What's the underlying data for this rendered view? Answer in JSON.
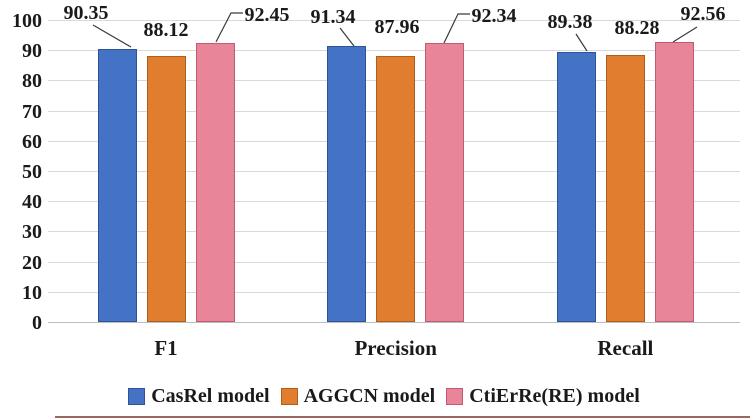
{
  "chart_data": {
    "type": "bar",
    "title": "",
    "categories": [
      "F1",
      "Precision",
      "Recall"
    ],
    "series": [
      {
        "name": "CasRel model",
        "color": "#4472C4",
        "border": "#2F5496",
        "values": [
          90.35,
          91.34,
          89.38
        ]
      },
      {
        "name": "AGGCN model",
        "color": "#E07D2E",
        "border": "#AE5E1D",
        "values": [
          88.12,
          87.96,
          88.28
        ]
      },
      {
        "name": "CtiErRe(RE) model",
        "color": "#E98598",
        "border": "#C05B74",
        "values": [
          92.45,
          92.34,
          92.56
        ]
      }
    ],
    "ylim": [
      0,
      100
    ],
    "yticks": [
      0,
      10,
      20,
      30,
      40,
      50,
      60,
      70,
      80,
      90,
      100
    ],
    "xlabel": "",
    "ylabel": "",
    "grid": "horizontal",
    "legend_position": "bottom",
    "data_labels": true,
    "data_label_format": "2-decimals"
  },
  "colors": {
    "gridline": "#D9D9D9",
    "baseline": "#BDBDBD",
    "leader_line": "#3A3A3A",
    "text": "#1A1A1A",
    "bottom_rule": "#7A332B"
  }
}
